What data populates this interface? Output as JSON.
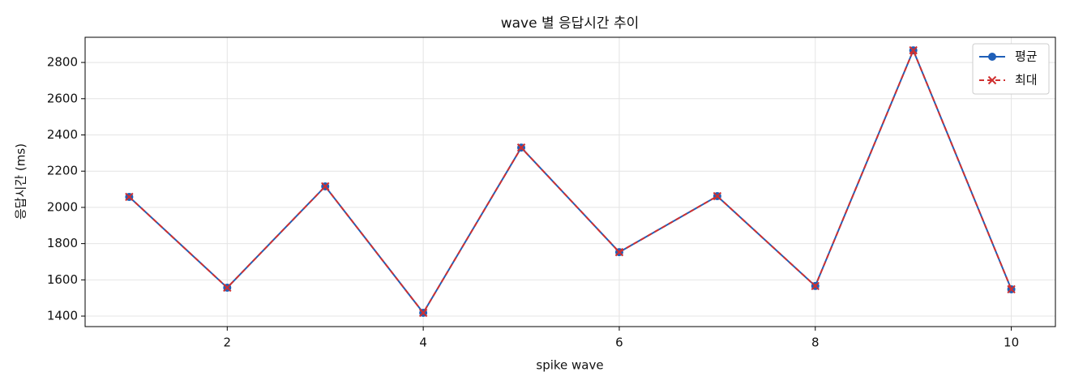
{
  "chart_data": {
    "type": "line",
    "title": "wave 별 응답시간 추이",
    "xlabel": "spike wave",
    "ylabel": "응답시간 (ms)",
    "x": [
      1,
      2,
      3,
      4,
      5,
      6,
      7,
      8,
      9,
      10
    ],
    "series": [
      {
        "name": "평균",
        "color": "#1f5fb8",
        "marker": "circle",
        "dash": false,
        "values": [
          2058,
          1557,
          2116,
          1418,
          2330,
          1753,
          2062,
          1566,
          2867,
          1548
        ]
      },
      {
        "name": "최대",
        "color": "#d03030",
        "marker": "x",
        "dash": true,
        "values": [
          2058,
          1557,
          2116,
          1418,
          2330,
          1753,
          2062,
          1566,
          2867,
          1548
        ]
      }
    ],
    "xlim": [
      0.55,
      10.45
    ],
    "xticks": [
      2,
      4,
      6,
      8,
      10
    ],
    "ylim": [
      1342,
      2939
    ],
    "yticks": [
      1400,
      1600,
      1800,
      2000,
      2200,
      2400,
      2600,
      2800
    ],
    "grid": true,
    "legend": "upper right"
  }
}
